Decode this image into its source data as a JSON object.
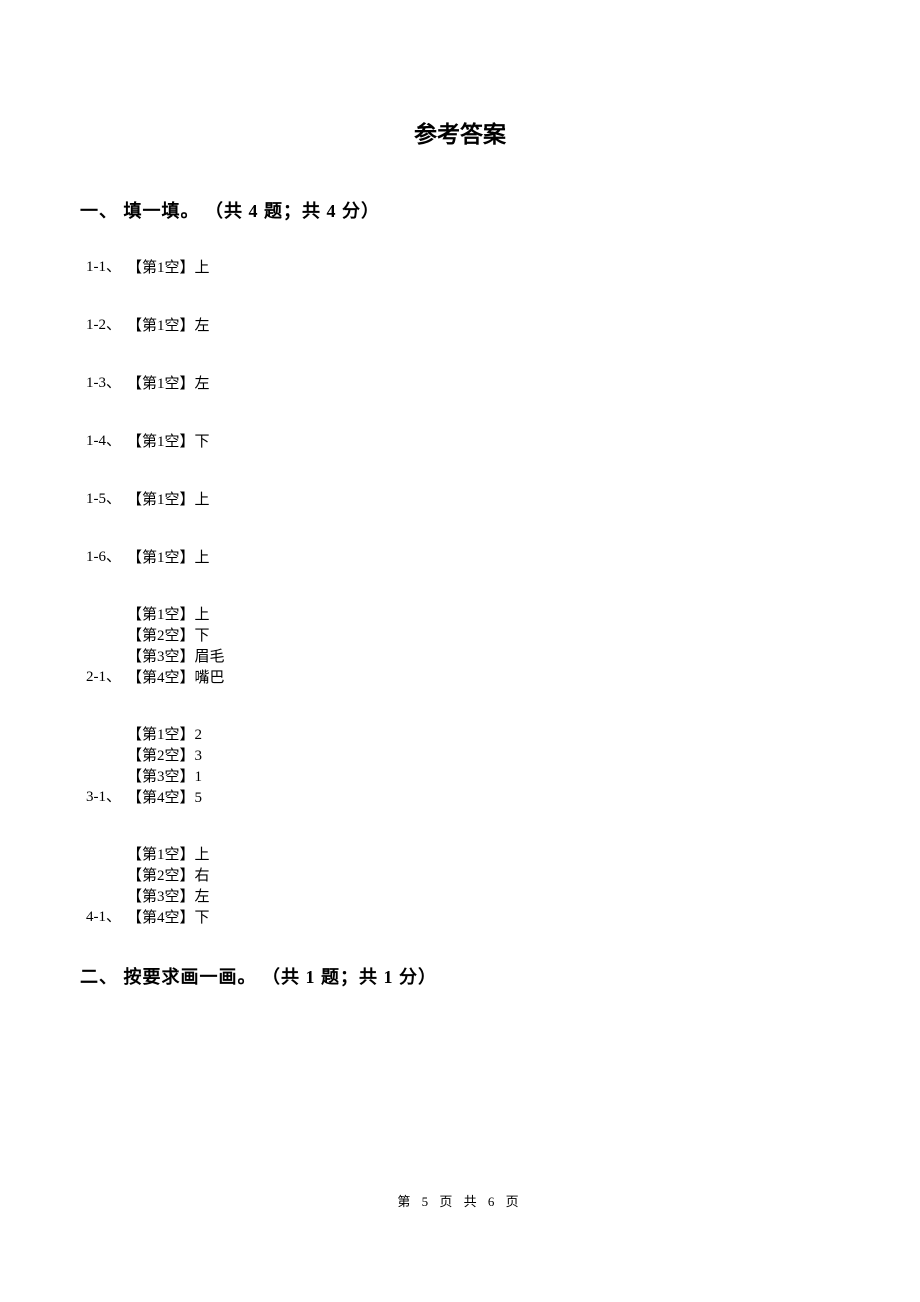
{
  "title": "参考答案",
  "section1": {
    "header": "一、 填一填。 （共 4 题；共 4 分）",
    "rows_single": [
      {
        "label": "1-1、",
        "text": "【第1空】上"
      },
      {
        "label": "1-2、",
        "text": "【第1空】左"
      },
      {
        "label": "1-3、",
        "text": "【第1空】左"
      },
      {
        "label": "1-4、",
        "text": "【第1空】下"
      },
      {
        "label": "1-5、",
        "text": "【第1空】上"
      },
      {
        "label": "1-6、",
        "text": "【第1空】上"
      }
    ],
    "rows_block": [
      {
        "label": "2-1、",
        "lines": [
          "【第1空】上",
          "【第2空】下",
          "【第3空】眉毛",
          "【第4空】嘴巴"
        ]
      },
      {
        "label": "3-1、",
        "lines": [
          "【第1空】2",
          "【第2空】3",
          "【第3空】1",
          "【第4空】5"
        ]
      },
      {
        "label": "4-1、",
        "lines": [
          "【第1空】上",
          "【第2空】右",
          "【第3空】左",
          "【第4空】下"
        ]
      }
    ]
  },
  "section2": {
    "header": "二、 按要求画一画。 （共 1 题；共 1 分）"
  },
  "footer": "第 5 页 共 6 页",
  "style": {
    "background_color": "#ffffff",
    "text_color": "#000000",
    "title_fontsize": 23,
    "section_fontsize": 18,
    "body_fontsize": 15,
    "footer_fontsize": 13
  }
}
